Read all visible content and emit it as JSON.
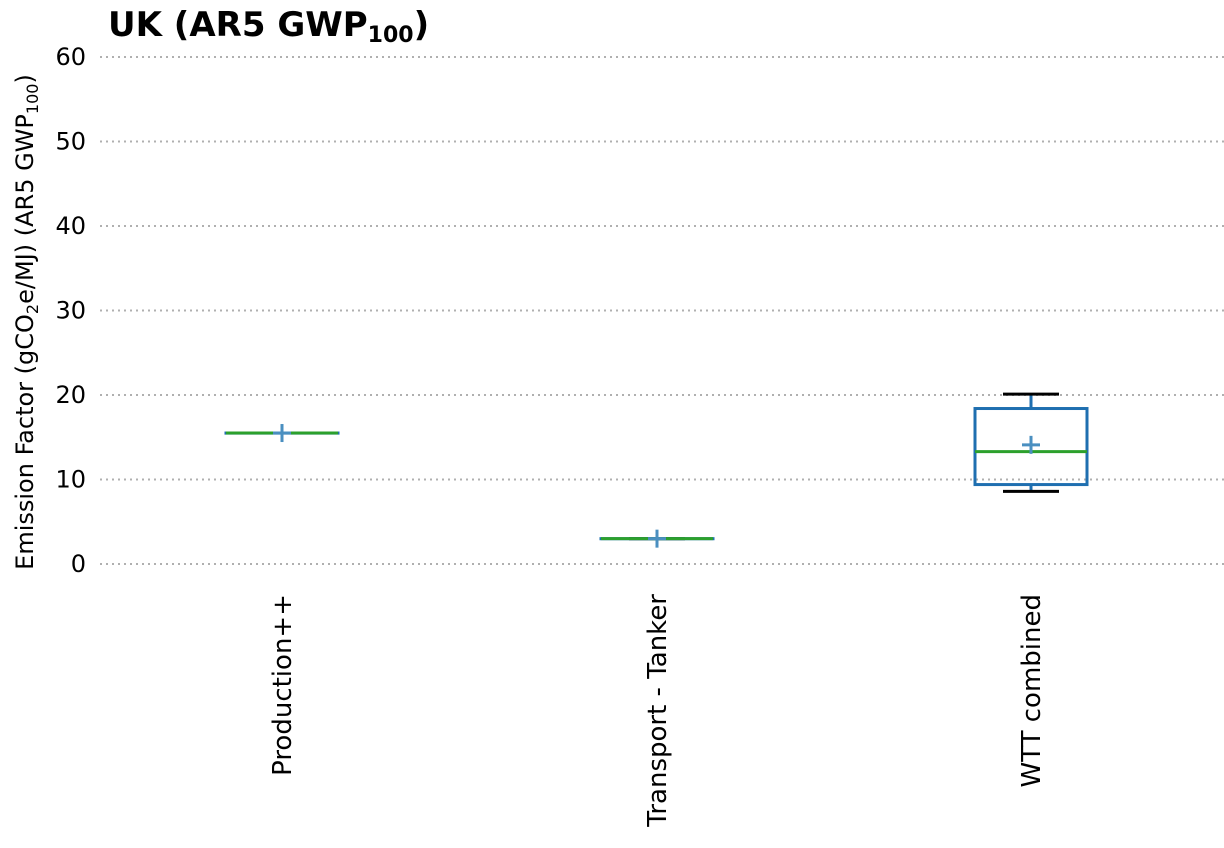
{
  "chart_data": {
    "type": "box",
    "title": {
      "main": "UK (AR5 GWP",
      "sub": "100",
      "end": ")"
    },
    "ylabel": {
      "pre": "Emission Factor (gCO",
      "sub1": "2",
      "mid": "e/MJ) (AR5 GWP",
      "sub2": "100",
      "end": ")"
    },
    "ylim": [
      0,
      60
    ],
    "yticks": [
      0,
      10,
      20,
      30,
      40,
      50,
      60
    ],
    "grid": true,
    "categories": [
      "Production++",
      "Transport - Tanker",
      "WTT combined"
    ],
    "boxes": [
      {
        "category": "Production++",
        "whisker_low": 15.5,
        "q1": 15.5,
        "median": 15.5,
        "q3": 15.5,
        "whisker_high": 15.5,
        "mean": 15.5
      },
      {
        "category": "Transport - Tanker",
        "whisker_low": 3.0,
        "q1": 3.0,
        "median": 3.0,
        "q3": 3.0,
        "whisker_high": 3.0,
        "mean": 3.0
      },
      {
        "category": "WTT combined",
        "whisker_low": 8.6,
        "q1": 9.4,
        "median": 13.3,
        "q3": 18.4,
        "whisker_high": 20.1,
        "mean": 14.1
      }
    ],
    "colors": {
      "box": "#1f6fb0",
      "median": "#2ca02c",
      "mean": "#4a8fc0",
      "whisker": "#000000",
      "grid": "#b0b0b0"
    }
  }
}
